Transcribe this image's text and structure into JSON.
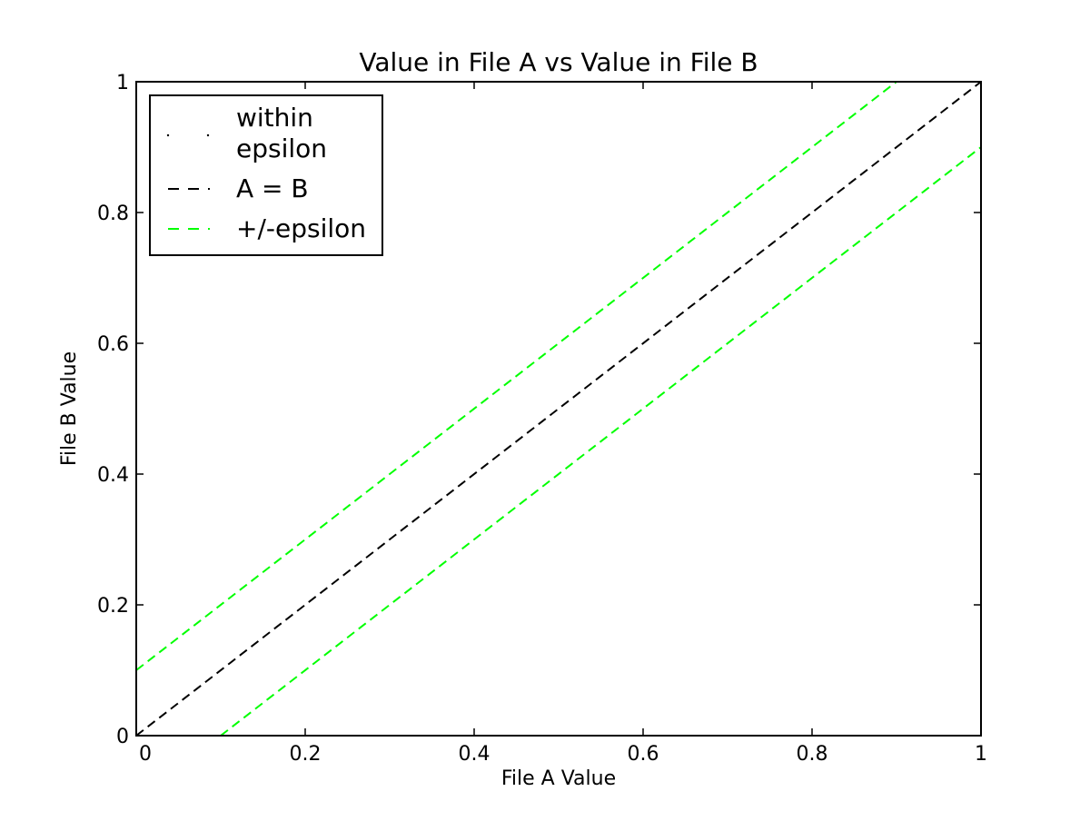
{
  "chart_data": {
    "type": "line",
    "title": "Value in File A vs Value in File B",
    "xlabel": "File A Value",
    "ylabel": "File B Value",
    "xlim": [
      0,
      1
    ],
    "ylim": [
      0,
      1
    ],
    "xticks": [
      0,
      0.2,
      0.4,
      0.6,
      0.8,
      1
    ],
    "xtick_labels": [
      "0",
      "0.2",
      "0.4",
      "0.6",
      "0.8",
      "1"
    ],
    "yticks": [
      0,
      0.2,
      0.4,
      0.6,
      0.8,
      1
    ],
    "ytick_labels": [
      "0",
      "0.2",
      "0.4",
      "0.6",
      "0.8",
      "1"
    ],
    "grid": false,
    "legend_position": "top-left",
    "series": [
      {
        "name": "within epsilon",
        "style": "points",
        "color": "#000000",
        "x": [],
        "y": []
      },
      {
        "name": "A = B",
        "style": "dashed",
        "color": "#000000",
        "x": [
          0,
          1
        ],
        "y": [
          0,
          1
        ]
      },
      {
        "name": "+/-epsilon",
        "style": "dashed",
        "color": "#00ff00",
        "x": [
          0,
          0.9
        ],
        "y": [
          0.1,
          1
        ]
      },
      {
        "name": "",
        "style": "dashed",
        "color": "#00ff00",
        "x": [
          0.1,
          1
        ],
        "y": [
          0,
          0.9
        ]
      }
    ],
    "legend": [
      {
        "label_lines": [
          "within",
          "epsilon"
        ],
        "series_index": 0
      },
      {
        "label_lines": [
          "A = B"
        ],
        "series_index": 1
      },
      {
        "label_lines": [
          "+/-epsilon"
        ],
        "series_index": 2
      }
    ]
  }
}
